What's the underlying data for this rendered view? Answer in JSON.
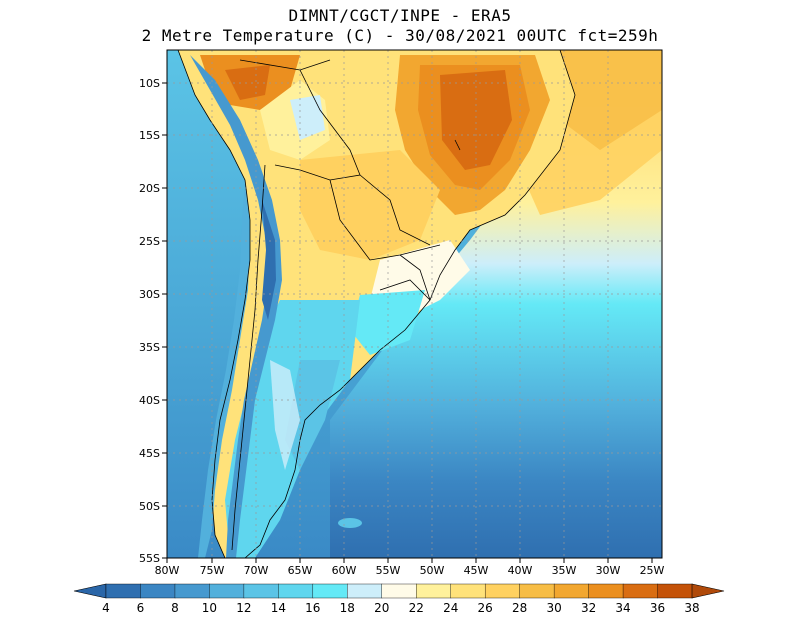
{
  "title": {
    "line1": "DIMNT/CGCT/INPE -  ERA5",
    "line2": "2 Metre Temperature (C) -  30/08/2021 00UTC fct=259h"
  },
  "map": {
    "lat_labels": [
      "10S",
      "15S",
      "20S",
      "25S",
      "30S",
      "35S",
      "40S",
      "45S",
      "50S",
      "55S"
    ],
    "lon_labels": [
      "80W",
      "75W",
      "70W",
      "65W",
      "60W",
      "55W",
      "50W",
      "45W",
      "40W",
      "35W",
      "30W",
      "25W"
    ]
  },
  "colorbar": {
    "labels": [
      "4",
      "6",
      "8",
      "10",
      "12",
      "14",
      "16",
      "18",
      "20",
      "22",
      "24",
      "26",
      "28",
      "30",
      "32",
      "34",
      "36",
      "38"
    ],
    "colors": [
      "#2f6fb0",
      "#3b86c3",
      "#4699cf",
      "#52b0dc",
      "#5bc4e6",
      "#5fd6ee",
      "#64e9f6",
      "#cdeefa",
      "#fffbe8",
      "#fff19c",
      "#ffe27a",
      "#ffd160",
      "#f7bd45",
      "#f2a730",
      "#eb8f1f",
      "#d96d12",
      "#c45208"
    ],
    "end_low": "#2a66a8",
    "end_high": "#b04a0a"
  }
}
